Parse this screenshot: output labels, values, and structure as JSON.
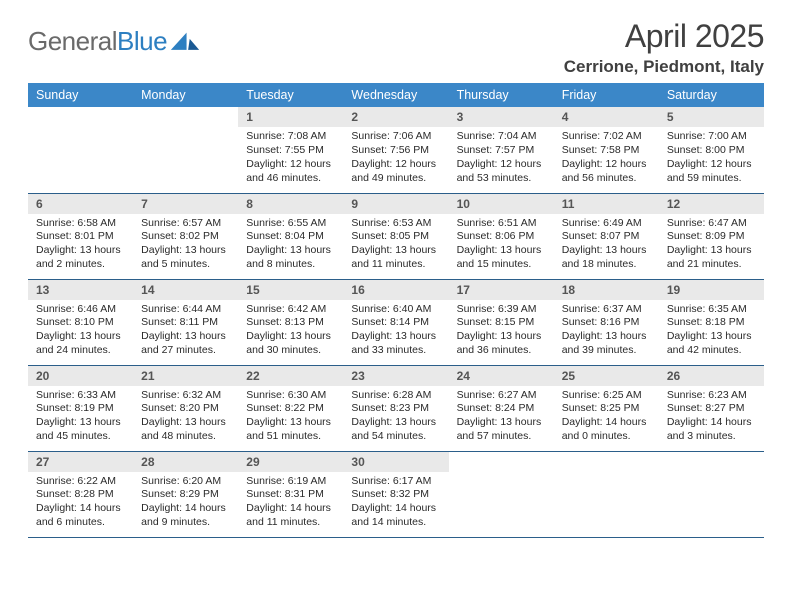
{
  "logo": {
    "word1": "General",
    "word2": "Blue"
  },
  "title": "April 2025",
  "location": "Cerrione, Piedmont, Italy",
  "colors": {
    "header_bg": "#3b87c8",
    "header_fg": "#ffffff",
    "daynum_bg": "#e9e9e9",
    "rule": "#2b5e8a",
    "logo_grey": "#6a6a6a",
    "logo_blue": "#2d7fc1"
  },
  "day_names": [
    "Sunday",
    "Monday",
    "Tuesday",
    "Wednesday",
    "Thursday",
    "Friday",
    "Saturday"
  ],
  "weeks": [
    [
      null,
      null,
      {
        "n": "1",
        "sr": "7:08 AM",
        "ss": "7:55 PM",
        "dl": "12 hours and 46 minutes."
      },
      {
        "n": "2",
        "sr": "7:06 AM",
        "ss": "7:56 PM",
        "dl": "12 hours and 49 minutes."
      },
      {
        "n": "3",
        "sr": "7:04 AM",
        "ss": "7:57 PM",
        "dl": "12 hours and 53 minutes."
      },
      {
        "n": "4",
        "sr": "7:02 AM",
        "ss": "7:58 PM",
        "dl": "12 hours and 56 minutes."
      },
      {
        "n": "5",
        "sr": "7:00 AM",
        "ss": "8:00 PM",
        "dl": "12 hours and 59 minutes."
      }
    ],
    [
      {
        "n": "6",
        "sr": "6:58 AM",
        "ss": "8:01 PM",
        "dl": "13 hours and 2 minutes."
      },
      {
        "n": "7",
        "sr": "6:57 AM",
        "ss": "8:02 PM",
        "dl": "13 hours and 5 minutes."
      },
      {
        "n": "8",
        "sr": "6:55 AM",
        "ss": "8:04 PM",
        "dl": "13 hours and 8 minutes."
      },
      {
        "n": "9",
        "sr": "6:53 AM",
        "ss": "8:05 PM",
        "dl": "13 hours and 11 minutes."
      },
      {
        "n": "10",
        "sr": "6:51 AM",
        "ss": "8:06 PM",
        "dl": "13 hours and 15 minutes."
      },
      {
        "n": "11",
        "sr": "6:49 AM",
        "ss": "8:07 PM",
        "dl": "13 hours and 18 minutes."
      },
      {
        "n": "12",
        "sr": "6:47 AM",
        "ss": "8:09 PM",
        "dl": "13 hours and 21 minutes."
      }
    ],
    [
      {
        "n": "13",
        "sr": "6:46 AM",
        "ss": "8:10 PM",
        "dl": "13 hours and 24 minutes."
      },
      {
        "n": "14",
        "sr": "6:44 AM",
        "ss": "8:11 PM",
        "dl": "13 hours and 27 minutes."
      },
      {
        "n": "15",
        "sr": "6:42 AM",
        "ss": "8:13 PM",
        "dl": "13 hours and 30 minutes."
      },
      {
        "n": "16",
        "sr": "6:40 AM",
        "ss": "8:14 PM",
        "dl": "13 hours and 33 minutes."
      },
      {
        "n": "17",
        "sr": "6:39 AM",
        "ss": "8:15 PM",
        "dl": "13 hours and 36 minutes."
      },
      {
        "n": "18",
        "sr": "6:37 AM",
        "ss": "8:16 PM",
        "dl": "13 hours and 39 minutes."
      },
      {
        "n": "19",
        "sr": "6:35 AM",
        "ss": "8:18 PM",
        "dl": "13 hours and 42 minutes."
      }
    ],
    [
      {
        "n": "20",
        "sr": "6:33 AM",
        "ss": "8:19 PM",
        "dl": "13 hours and 45 minutes."
      },
      {
        "n": "21",
        "sr": "6:32 AM",
        "ss": "8:20 PM",
        "dl": "13 hours and 48 minutes."
      },
      {
        "n": "22",
        "sr": "6:30 AM",
        "ss": "8:22 PM",
        "dl": "13 hours and 51 minutes."
      },
      {
        "n": "23",
        "sr": "6:28 AM",
        "ss": "8:23 PM",
        "dl": "13 hours and 54 minutes."
      },
      {
        "n": "24",
        "sr": "6:27 AM",
        "ss": "8:24 PM",
        "dl": "13 hours and 57 minutes."
      },
      {
        "n": "25",
        "sr": "6:25 AM",
        "ss": "8:25 PM",
        "dl": "14 hours and 0 minutes."
      },
      {
        "n": "26",
        "sr": "6:23 AM",
        "ss": "8:27 PM",
        "dl": "14 hours and 3 minutes."
      }
    ],
    [
      {
        "n": "27",
        "sr": "6:22 AM",
        "ss": "8:28 PM",
        "dl": "14 hours and 6 minutes."
      },
      {
        "n": "28",
        "sr": "6:20 AM",
        "ss": "8:29 PM",
        "dl": "14 hours and 9 minutes."
      },
      {
        "n": "29",
        "sr": "6:19 AM",
        "ss": "8:31 PM",
        "dl": "14 hours and 11 minutes."
      },
      {
        "n": "30",
        "sr": "6:17 AM",
        "ss": "8:32 PM",
        "dl": "14 hours and 14 minutes."
      },
      null,
      null,
      null
    ]
  ],
  "labels": {
    "sunrise": "Sunrise: ",
    "sunset": "Sunset: ",
    "daylight": "Daylight: "
  }
}
